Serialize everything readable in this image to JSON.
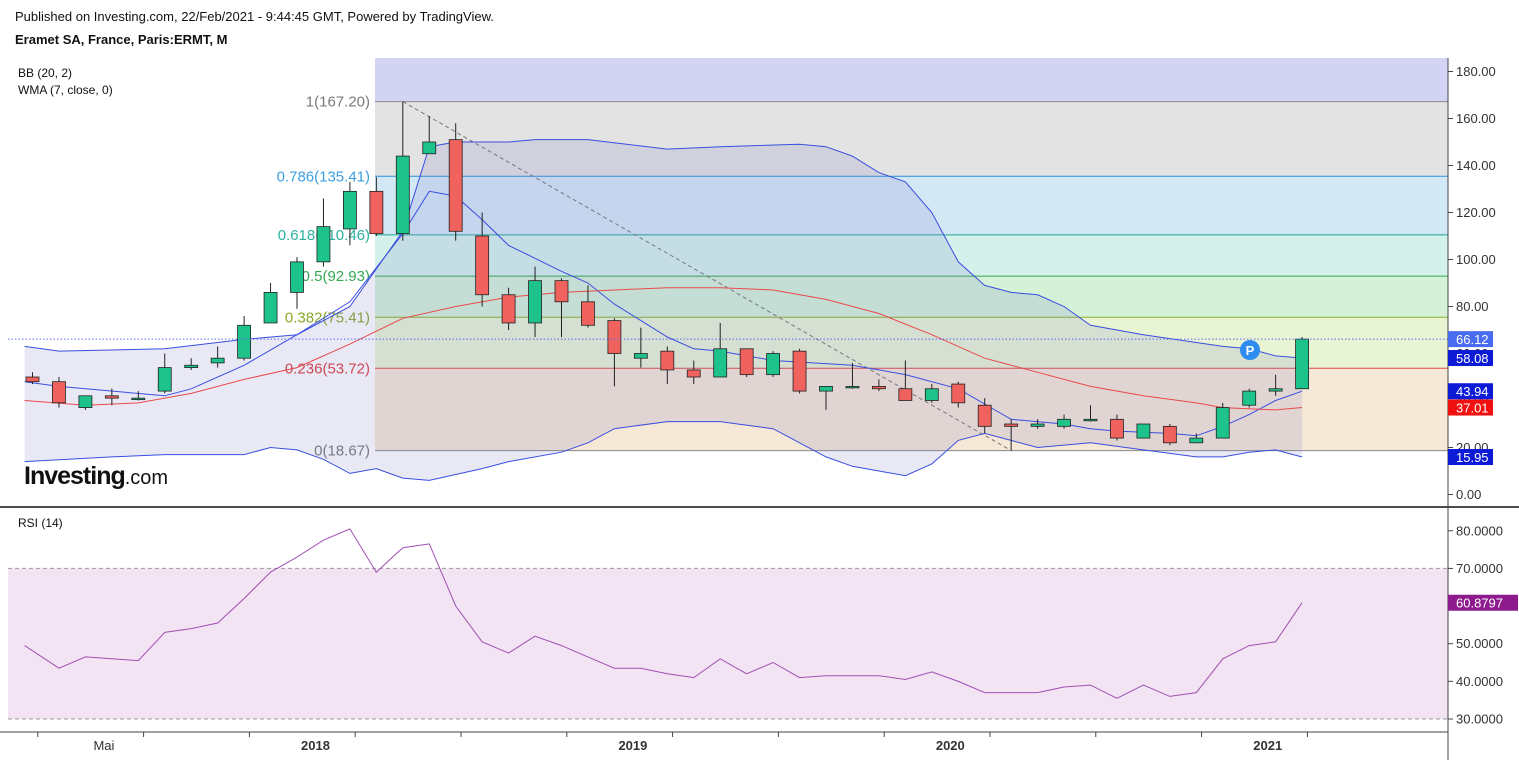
{
  "header": {
    "published": "Published on Investing.com, 22/Feb/2021 - 9:44:45 GMT, Powered by TradingView.",
    "symbol": "Eramet SA, France, Paris:ERMT, M"
  },
  "indicators": {
    "bb": "BB (20, 2)",
    "wma": "WMA (7, close, 0)",
    "rsi": "RSI (14)"
  },
  "logo": {
    "main": "Investing",
    "suffix": ".com"
  },
  "colors": {
    "up": "#1ec28b",
    "down": "#f0625d",
    "bb_band": "#3a4ee0",
    "wma": "#e84a4a",
    "rsi_line": "#a050b4",
    "rsi_band": "#f2e4f2",
    "fib_top": "#d3d3f3"
  },
  "chart_data": [
    {
      "type": "candlestick",
      "title": "Eramet SA, France, Paris:ERMT, M",
      "ylim": [
        -5,
        185
      ],
      "price_ticks": [
        "180.00",
        "160.00",
        "140.00",
        "120.00",
        "100.00",
        "80.00",
        "60.00",
        "40.00",
        "20.00",
        "0.00"
      ],
      "x_labels": [
        {
          "label": "Mai",
          "index": 2.7
        },
        {
          "label": "2018",
          "index": 10.7
        },
        {
          "label": "2019",
          "index": 22.7
        },
        {
          "label": "2020",
          "index": 34.7
        },
        {
          "label": "2021",
          "index": 46.7
        }
      ],
      "candles": [
        {
          "o": 50,
          "h": 52,
          "l": 47,
          "c": 48
        },
        {
          "o": 48,
          "h": 50,
          "l": 37,
          "c": 39
        },
        {
          "o": 37,
          "h": 42,
          "l": 36,
          "c": 42
        },
        {
          "o": 42,
          "h": 45,
          "l": 38,
          "c": 41
        },
        {
          "o": 41,
          "h": 44,
          "l": 40,
          "c": 41
        },
        {
          "o": 44,
          "h": 60,
          "l": 43,
          "c": 54
        },
        {
          "o": 54,
          "h": 58,
          "l": 53,
          "c": 55
        },
        {
          "o": 56,
          "h": 63,
          "l": 54,
          "c": 58
        },
        {
          "o": 58,
          "h": 76,
          "l": 57,
          "c": 72
        },
        {
          "o": 73,
          "h": 90,
          "l": 73,
          "c": 86
        },
        {
          "o": 86,
          "h": 101,
          "l": 79,
          "c": 99
        },
        {
          "o": 99,
          "h": 126,
          "l": 97,
          "c": 114
        },
        {
          "o": 113,
          "h": 133,
          "l": 106,
          "c": 129
        },
        {
          "o": 129,
          "h": 135,
          "l": 110,
          "c": 111
        },
        {
          "o": 111,
          "h": 167.2,
          "l": 108,
          "c": 144
        },
        {
          "o": 145,
          "h": 161,
          "l": 145,
          "c": 150
        },
        {
          "o": 151,
          "h": 158,
          "l": 108,
          "c": 112
        },
        {
          "o": 110,
          "h": 120,
          "l": 80,
          "c": 85
        },
        {
          "o": 85,
          "h": 88,
          "l": 70,
          "c": 73
        },
        {
          "o": 73,
          "h": 97,
          "l": 67,
          "c": 91
        },
        {
          "o": 91,
          "h": 92,
          "l": 67,
          "c": 82
        },
        {
          "o": 82,
          "h": 89,
          "l": 71,
          "c": 72
        },
        {
          "o": 74,
          "h": 75,
          "l": 46,
          "c": 60
        },
        {
          "o": 58,
          "h": 71,
          "l": 54,
          "c": 60
        },
        {
          "o": 61,
          "h": 63,
          "l": 47,
          "c": 53
        },
        {
          "o": 53,
          "h": 57,
          "l": 47,
          "c": 50
        },
        {
          "o": 50,
          "h": 73,
          "l": 50,
          "c": 62
        },
        {
          "o": 62,
          "h": 62,
          "l": 50,
          "c": 51
        },
        {
          "o": 51,
          "h": 61,
          "l": 50,
          "c": 60
        },
        {
          "o": 61,
          "h": 62,
          "l": 43,
          "c": 44
        },
        {
          "o": 44,
          "h": 46,
          "l": 36,
          "c": 46
        },
        {
          "o": 46,
          "h": 56,
          "l": 45,
          "c": 46
        },
        {
          "o": 46,
          "h": 49,
          "l": 44,
          "c": 45
        },
        {
          "o": 45,
          "h": 57,
          "l": 40,
          "c": 40
        },
        {
          "o": 40,
          "h": 47,
          "l": 39,
          "c": 45
        },
        {
          "o": 47,
          "h": 48,
          "l": 37,
          "c": 39
        },
        {
          "o": 38,
          "h": 41,
          "l": 26,
          "c": 29
        },
        {
          "o": 30,
          "h": 32,
          "l": 18.67,
          "c": 29
        },
        {
          "o": 29,
          "h": 32,
          "l": 28,
          "c": 30
        },
        {
          "o": 29,
          "h": 34,
          "l": 28,
          "c": 32
        },
        {
          "o": 32,
          "h": 38,
          "l": 31,
          "c": 32
        },
        {
          "o": 32,
          "h": 34,
          "l": 23,
          "c": 24
        },
        {
          "o": 24,
          "h": 30,
          "l": 24,
          "c": 30
        },
        {
          "o": 29,
          "h": 30,
          "l": 21,
          "c": 22
        },
        {
          "o": 22,
          "h": 26,
          "l": 22,
          "c": 24
        },
        {
          "o": 24,
          "h": 39,
          "l": 24,
          "c": 37
        },
        {
          "o": 38,
          "h": 45,
          "l": 37,
          "c": 44
        },
        {
          "o": 44,
          "h": 51,
          "l": 42,
          "c": 45
        },
        {
          "o": 45,
          "h": 67,
          "l": 45,
          "c": 66.12
        }
      ],
      "bb_upper_points": [
        [
          -0.3,
          63
        ],
        [
          1,
          61
        ],
        [
          5,
          62
        ],
        [
          8,
          66
        ],
        [
          10,
          68
        ],
        [
          12,
          80
        ],
        [
          14,
          112
        ],
        [
          15,
          148
        ],
        [
          16,
          150
        ],
        [
          18,
          150
        ],
        [
          19,
          151
        ],
        [
          21,
          151
        ],
        [
          24,
          147
        ],
        [
          26,
          148
        ],
        [
          29,
          149
        ],
        [
          30,
          148
        ],
        [
          31,
          144
        ],
        [
          32,
          137
        ],
        [
          33,
          133
        ],
        [
          34,
          120
        ],
        [
          35,
          99
        ],
        [
          36,
          89
        ],
        [
          37,
          86
        ],
        [
          38,
          85
        ],
        [
          39,
          80
        ],
        [
          40,
          72
        ],
        [
          42,
          68
        ],
        [
          45,
          63
        ],
        [
          46,
          62
        ],
        [
          47,
          59
        ],
        [
          48,
          58.08
        ]
      ],
      "bb_middle_points": [
        [
          -0.3,
          48
        ],
        [
          1,
          46
        ],
        [
          5,
          42
        ],
        [
          6,
          45
        ],
        [
          8,
          55
        ],
        [
          10,
          68
        ],
        [
          12,
          82
        ],
        [
          14,
          111
        ],
        [
          15,
          129
        ],
        [
          16,
          127
        ],
        [
          17,
          117
        ],
        [
          18,
          106
        ],
        [
          20,
          95
        ],
        [
          21,
          90
        ],
        [
          22,
          81
        ],
        [
          23,
          74
        ],
        [
          24,
          67
        ],
        [
          25,
          62
        ],
        [
          26,
          61
        ],
        [
          28,
          57
        ],
        [
          31,
          55
        ],
        [
          33,
          51
        ],
        [
          35,
          45
        ],
        [
          37,
          32
        ],
        [
          39,
          30
        ],
        [
          40,
          28
        ],
        [
          41,
          27
        ],
        [
          43,
          26
        ],
        [
          44,
          25
        ],
        [
          45,
          29
        ],
        [
          46,
          34
        ],
        [
          47,
          40
        ],
        [
          48,
          43.94
        ]
      ],
      "wma_points": [
        [
          -0.3,
          40
        ],
        [
          2,
          38
        ],
        [
          4,
          39
        ],
        [
          6,
          43
        ],
        [
          8,
          49
        ],
        [
          10,
          54
        ],
        [
          12,
          64
        ],
        [
          14,
          75
        ],
        [
          16,
          80
        ],
        [
          18,
          84
        ],
        [
          20,
          86
        ],
        [
          22,
          87
        ],
        [
          24,
          88
        ],
        [
          26,
          88
        ],
        [
          28,
          87
        ],
        [
          30,
          83
        ],
        [
          32,
          77
        ],
        [
          34,
          68
        ],
        [
          36,
          58
        ],
        [
          38,
          52
        ],
        [
          40,
          46
        ],
        [
          42,
          42
        ],
        [
          44,
          39
        ],
        [
          45,
          37
        ],
        [
          47,
          36
        ],
        [
          48,
          37.01
        ]
      ],
      "bb_lower_points": [
        [
          -0.3,
          14
        ],
        [
          3,
          16
        ],
        [
          5,
          17
        ],
        [
          8,
          17
        ],
        [
          9,
          20
        ],
        [
          10,
          19
        ],
        [
          11,
          15
        ],
        [
          12,
          9
        ],
        [
          13,
          11
        ],
        [
          14,
          7
        ],
        [
          15,
          6
        ],
        [
          17,
          11
        ],
        [
          18,
          14
        ],
        [
          20,
          18
        ],
        [
          21,
          22
        ],
        [
          22,
          28
        ],
        [
          24,
          31
        ],
        [
          26,
          31
        ],
        [
          28,
          28
        ],
        [
          30,
          16
        ],
        [
          31,
          12
        ],
        [
          32,
          10
        ],
        [
          33,
          8
        ],
        [
          34,
          13
        ],
        [
          35,
          23
        ],
        [
          36,
          26
        ],
        [
          37,
          23
        ],
        [
          38,
          20
        ],
        [
          40,
          22
        ],
        [
          42,
          19
        ],
        [
          44,
          16
        ],
        [
          45,
          16
        ],
        [
          46,
          18
        ],
        [
          47,
          19
        ],
        [
          48,
          15.95
        ]
      ],
      "fibonacci": {
        "levels": [
          {
            "ratio": "1",
            "label": "1(167.20)",
            "price": 167.2
          },
          {
            "ratio": "0.786",
            "label": "0.786(135.41)",
            "price": 135.41
          },
          {
            "ratio": "0.618",
            "label": "0.618(110.46)",
            "price": 110.46
          },
          {
            "ratio": "0.5",
            "label": "0.5(92.93)",
            "price": 92.93
          },
          {
            "ratio": "0.382",
            "label": "0.382(75.41)",
            "price": 75.41
          },
          {
            "ratio": "0.236",
            "label": "0.236(53.72)",
            "price": 53.72
          },
          {
            "ratio": "0",
            "label": "0(18.67)",
            "price": 18.67
          }
        ],
        "start_index": 14,
        "end_index": 37,
        "band_top_price": 185
      },
      "current_price_line": 66.12,
      "price_badges": [
        {
          "value": "66.12",
          "price": 66.12,
          "color": "#4a6cf0"
        },
        {
          "value": "58.08",
          "price": 58.08,
          "color": "#0d1ad6"
        },
        {
          "value": "43.94",
          "price": 43.94,
          "color": "#0d1ad6"
        },
        {
          "value": "37.01",
          "price": 37.01,
          "color": "#f01010"
        },
        {
          "value": "15.95",
          "price": 15.95,
          "color": "#0d1ad6"
        }
      ],
      "pivot_marker": "P"
    },
    {
      "type": "line",
      "title": "RSI (14)",
      "ylim": [
        27.5,
        83.5
      ],
      "ticks": [
        "80.0000",
        "70.0000",
        "60.0000",
        "50.0000",
        "40.0000",
        "30.0000"
      ],
      "band": [
        30,
        70
      ],
      "points": [
        [
          -0.3,
          49.5
        ],
        [
          1,
          43.5
        ],
        [
          2,
          46.5
        ],
        [
          3,
          46
        ],
        [
          4,
          45.5
        ],
        [
          5,
          53
        ],
        [
          6,
          54
        ],
        [
          7,
          55.5
        ],
        [
          8,
          62
        ],
        [
          9,
          69
        ],
        [
          10,
          73
        ],
        [
          11,
          77.5
        ],
        [
          12,
          80.5
        ],
        [
          13,
          69
        ],
        [
          14,
          75.5
        ],
        [
          15,
          76.5
        ],
        [
          16,
          60
        ],
        [
          17,
          50.5
        ],
        [
          18,
          47.5
        ],
        [
          19,
          52
        ],
        [
          20,
          49.5
        ],
        [
          21,
          46.5
        ],
        [
          22,
          43.5
        ],
        [
          23,
          43.5
        ],
        [
          24,
          42
        ],
        [
          25,
          41
        ],
        [
          26,
          46
        ],
        [
          27,
          42
        ],
        [
          28,
          45
        ],
        [
          29,
          41
        ],
        [
          30,
          41.5
        ],
        [
          31,
          41.5
        ],
        [
          32,
          41.5
        ],
        [
          33,
          40.5
        ],
        [
          34,
          42.5
        ],
        [
          35,
          40
        ],
        [
          36,
          37
        ],
        [
          37,
          37
        ],
        [
          38,
          37
        ],
        [
          39,
          38.5
        ],
        [
          40,
          39
        ],
        [
          41,
          35.5
        ],
        [
          42,
          39
        ],
        [
          43,
          36
        ],
        [
          44,
          37
        ],
        [
          45,
          46
        ],
        [
          46,
          49.5
        ],
        [
          47,
          50.5
        ],
        [
          48,
          60.8797
        ]
      ],
      "last_badge": "60.8797"
    }
  ]
}
